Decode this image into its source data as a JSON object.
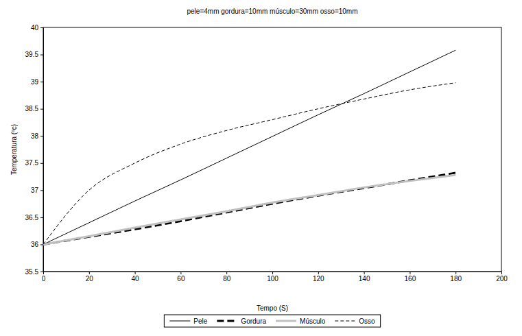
{
  "chart_data": {
    "type": "line",
    "title": "pele=4mm gordura=10mm músculo=30mm osso=10mm",
    "x_label": "Tempo (S)",
    "y_label": "Temperatura (ºc)",
    "x": [
      0,
      20,
      40,
      60,
      80,
      100,
      120,
      140,
      160,
      180
    ],
    "series": [
      {
        "name": "Pele",
        "color": "#000000",
        "line_style": "solid",
        "values": [
          36,
          36.4,
          36.8,
          37.19,
          37.59,
          37.99,
          38.39,
          38.78,
          39.18,
          39.58
        ]
      },
      {
        "name": "Gordura",
        "color": "#000000",
        "line_style": "dashed",
        "values": [
          36,
          36.14,
          36.28,
          36.43,
          36.59,
          36.75,
          36.9,
          37.04,
          37.18,
          37.32
        ]
      },
      {
        "name": "Músculo",
        "color": "#c0c0c0",
        "line_style": "solid",
        "values": [
          36,
          36.15,
          36.31,
          36.46,
          36.61,
          36.77,
          36.91,
          37.05,
          37.17,
          37.28
        ]
      },
      {
        "name": "Osso",
        "color": "#000000",
        "line_style": "dashed",
        "values": [
          36,
          37.0,
          37.5,
          37.85,
          38.1,
          38.3,
          38.5,
          38.68,
          38.85,
          38.98
        ]
      }
    ],
    "xlim": [
      0,
      200
    ],
    "xticks": [
      0,
      20,
      40,
      60,
      80,
      100,
      120,
      140,
      160,
      180,
      200
    ],
    "ylim": [
      35.5,
      40
    ],
    "yticks": [
      35.5,
      36,
      36.5,
      37,
      37.5,
      38,
      38.5,
      39,
      39.5,
      40
    ],
    "grid": false,
    "legend": "bottom"
  }
}
